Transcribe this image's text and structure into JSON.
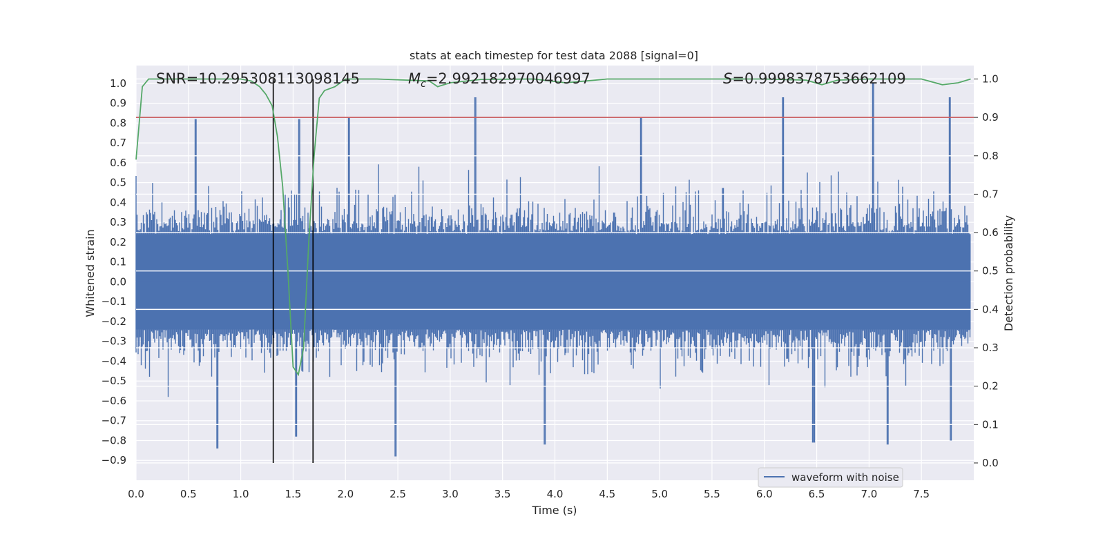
{
  "chart_data": {
    "type": "line",
    "title": "stats at each timestep for test data 2088 [signal=0]",
    "xlabel": "Time (s)",
    "ylabel_left": "Whitened strain",
    "ylabel_right": "Detection probability",
    "xlim": [
      0.0,
      8.0
    ],
    "ylim_left": [
      -1.0,
      1.09
    ],
    "ylim_right": [
      -0.045,
      1.035
    ],
    "x_ticks": [
      "0.0",
      "0.5",
      "1.0",
      "1.5",
      "2.0",
      "2.5",
      "3.0",
      "3.5",
      "4.0",
      "4.5",
      "5.0",
      "5.5",
      "6.0",
      "6.5",
      "7.0",
      "7.5"
    ],
    "y_ticks_left": [
      "−0.9",
      "−0.8",
      "−0.7",
      "−0.6",
      "−0.5",
      "−0.4",
      "−0.3",
      "−0.2",
      "−0.1",
      "0.0",
      "0.1",
      "0.2",
      "0.3",
      "0.4",
      "0.5",
      "0.6",
      "0.7",
      "0.8",
      "0.9",
      "1.0"
    ],
    "y_ticks_right": [
      "0.0",
      "0.1",
      "0.2",
      "0.3",
      "0.4",
      "0.5",
      "0.6",
      "0.7",
      "0.8",
      "0.9",
      "1.0"
    ],
    "grid": true,
    "legend": {
      "placement": "lower-right",
      "entries": [
        "waveform with noise"
      ]
    },
    "annotations": {
      "snr": "SNR=10.295308113098145",
      "mc_symbol": "M",
      "mc_subscript": "c",
      "mc_value": "=2.992182970046997",
      "s_symbol": "S",
      "s_value": "=0.9998378753662109"
    },
    "threshold": {
      "value": 0.9,
      "axis": "right",
      "color": "#c44e52"
    },
    "vlines_x": [
      1.31,
      1.69
    ],
    "series": [
      {
        "name": "waveform with noise",
        "axis": "left",
        "color": "#4c72b0",
        "note": "whitened noisy strain, ~8 s, values mostly within ±0.5",
        "peak_max": [
          [
            0.57,
            0.82
          ],
          [
            1.56,
            0.82
          ],
          [
            2.03,
            0.83
          ],
          [
            3.24,
            0.93
          ],
          [
            4.82,
            0.83
          ],
          [
            6.18,
            0.93
          ],
          [
            7.04,
            1.0
          ],
          [
            7.77,
            0.93
          ]
        ],
        "peak_min": [
          [
            0.78,
            -0.84
          ],
          [
            1.53,
            -0.78
          ],
          [
            2.48,
            -0.88
          ],
          [
            3.9,
            -0.82
          ],
          [
            6.47,
            -0.81
          ],
          [
            7.18,
            -0.82
          ],
          [
            7.78,
            -0.8
          ]
        ]
      },
      {
        "name": "detection probability",
        "axis": "right",
        "color": "#55a868",
        "x": [
          0.0,
          0.06,
          0.12,
          0.2,
          0.5,
          0.8,
          1.0,
          1.1,
          1.18,
          1.24,
          1.3,
          1.35,
          1.4,
          1.45,
          1.5,
          1.55,
          1.6,
          1.65,
          1.7,
          1.75,
          1.8,
          1.9,
          2.0,
          2.3,
          2.8,
          2.88,
          3.0,
          3.3,
          3.8,
          4.1,
          4.3,
          4.5,
          5.0,
          5.5,
          6.0,
          6.4,
          6.55,
          6.7,
          7.0,
          7.5,
          7.7,
          7.85,
          7.97
        ],
        "y": [
          0.79,
          0.98,
          1.0,
          1.0,
          1.0,
          1.0,
          1.0,
          0.995,
          0.98,
          0.96,
          0.93,
          0.85,
          0.72,
          0.5,
          0.25,
          0.23,
          0.3,
          0.58,
          0.8,
          0.95,
          0.97,
          0.98,
          1.0,
          1.0,
          0.995,
          0.98,
          0.99,
          0.999,
          1.0,
          0.99,
          0.995,
          1.0,
          1.0,
          1.0,
          1.0,
          0.997,
          0.985,
          0.997,
          1.0,
          1.0,
          0.985,
          0.99,
          1.0
        ]
      }
    ]
  }
}
